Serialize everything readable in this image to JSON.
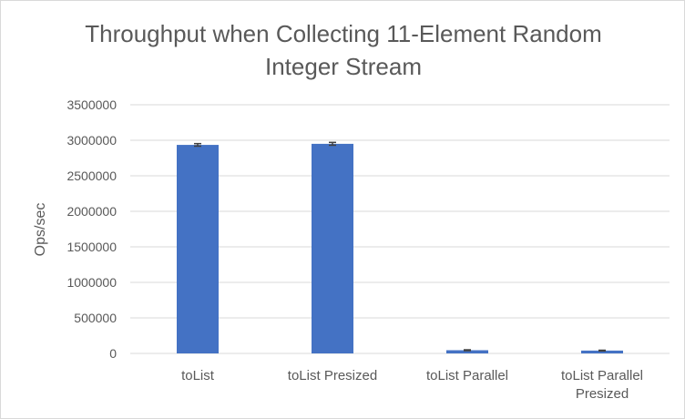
{
  "chart_data": {
    "type": "bar",
    "title_lines": [
      "Throughput when Collecting 11-Element Random",
      "Integer Stream"
    ],
    "ylabel": "Ops/sec",
    "xlabel": "",
    "categories": [
      [
        "toList"
      ],
      [
        "toList Presized"
      ],
      [
        "toList Parallel"
      ],
      [
        "toList Parallel",
        "Presized"
      ]
    ],
    "values": [
      2935000,
      2950000,
      45000,
      40000
    ],
    "error": [
      18000,
      20000,
      6000,
      5000
    ],
    "ylim": [
      0,
      3500000
    ],
    "yticks": [
      "0",
      "500000",
      "1000000",
      "1500000",
      "2000000",
      "2500000",
      "3000000",
      "3500000"
    ],
    "ytick_values": [
      0,
      500000,
      1000000,
      1500000,
      2000000,
      2500000,
      3000000,
      3500000
    ],
    "grid": true,
    "legend": "none",
    "bar_color": "#4472c4",
    "error_color": "#404040",
    "grid_color": "#d9d9d9"
  }
}
